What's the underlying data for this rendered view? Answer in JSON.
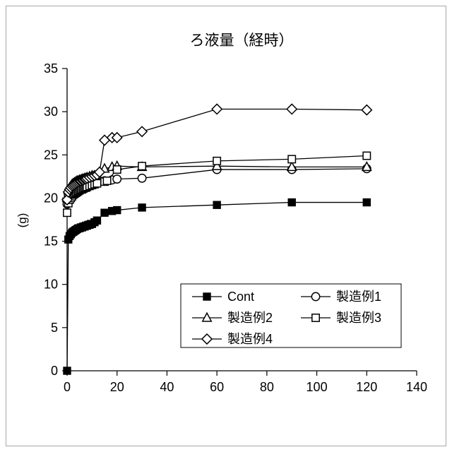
{
  "chart_data": {
    "type": "line",
    "title": "ろ液量（経時）",
    "xlabel": "",
    "ylabel": "(g)",
    "xlim": [
      0,
      140
    ],
    "ylim": [
      0,
      35
    ],
    "xticks": [
      0,
      20,
      40,
      60,
      80,
      100,
      120,
      140
    ],
    "yticks": [
      0,
      5,
      10,
      15,
      20,
      25,
      30,
      35
    ],
    "grid": false,
    "line_color": "#000000",
    "legend_position": "inside-bottom-right",
    "series": [
      {
        "name": "Cont",
        "marker": "filled-square",
        "x": [
          0,
          0.5,
          1,
          1.5,
          2,
          2.5,
          3,
          3.5,
          4,
          4.5,
          5,
          5.5,
          6,
          6.5,
          7,
          7.5,
          8,
          8.5,
          9,
          9.5,
          10,
          11,
          12,
          15,
          18,
          20,
          30,
          60,
          90,
          120
        ],
        "y": [
          0,
          15.2,
          15.6,
          15.8,
          16.0,
          16.1,
          16.2,
          16.3,
          16.4,
          16.5,
          16.5,
          16.6,
          16.6,
          16.7,
          16.7,
          16.8,
          16.8,
          16.9,
          16.9,
          17.0,
          17.0,
          17.2,
          17.4,
          18.3,
          18.5,
          18.6,
          18.9,
          19.2,
          19.5,
          19.5
        ]
      },
      {
        "name": "製造例1",
        "marker": "open-circle",
        "x": [
          0,
          0.5,
          1,
          1.5,
          2,
          2.5,
          3,
          3.5,
          4,
          4.5,
          5,
          5.5,
          6,
          6.5,
          7,
          7.5,
          8,
          9,
          10,
          11,
          12,
          15,
          18,
          20,
          30,
          60,
          90,
          120
        ],
        "y": [
          19.3,
          20.2,
          20.6,
          20.8,
          21.0,
          21.1,
          21.2,
          21.3,
          21.4,
          21.4,
          21.5,
          21.5,
          21.6,
          21.6,
          21.7,
          21.7,
          21.8,
          21.8,
          21.9,
          21.9,
          22.0,
          22.0,
          22.1,
          22.2,
          22.3,
          23.3,
          23.3,
          23.4
        ]
      },
      {
        "name": "製造例2",
        "marker": "open-triangle",
        "x": [
          0,
          0.5,
          1,
          1.5,
          2,
          2.5,
          3,
          3.5,
          4,
          4.5,
          5,
          5.5,
          6,
          6.5,
          7,
          7.5,
          8,
          9,
          10,
          11,
          12,
          15,
          18,
          20,
          30,
          60,
          90,
          120
        ],
        "y": [
          20.0,
          20.9,
          21.2,
          21.4,
          21.6,
          21.7,
          21.8,
          21.9,
          22.0,
          22.0,
          22.1,
          22.1,
          22.2,
          22.2,
          22.3,
          22.3,
          22.4,
          22.5,
          22.6,
          22.6,
          22.7,
          23.4,
          23.6,
          23.7,
          23.6,
          23.7,
          23.6,
          23.6
        ]
      },
      {
        "name": "製造例3",
        "marker": "open-square",
        "x": [
          0,
          0.5,
          1,
          1.5,
          2,
          2.5,
          3,
          3.5,
          4,
          4.5,
          5,
          5.5,
          6,
          6.5,
          7,
          7.5,
          8,
          9,
          10,
          11,
          12,
          15,
          16,
          20,
          30,
          60,
          90,
          120
        ],
        "y": [
          18.3,
          19.4,
          19.8,
          20.0,
          20.2,
          20.4,
          20.5,
          20.6,
          20.7,
          20.8,
          20.9,
          21.0,
          21.0,
          21.1,
          21.2,
          21.2,
          21.3,
          21.4,
          21.5,
          21.6,
          21.7,
          21.9,
          22.0,
          23.3,
          23.7,
          24.3,
          24.5,
          24.9
        ]
      },
      {
        "name": "製造例4",
        "marker": "open-diamond",
        "x": [
          0,
          0.5,
          1,
          1.5,
          2,
          2.5,
          3,
          3.5,
          4,
          4.5,
          5,
          5.5,
          6,
          6.5,
          7,
          7.5,
          8,
          9,
          10,
          11,
          12,
          13,
          15,
          18,
          20,
          30,
          60,
          90,
          120
        ],
        "y": [
          19.8,
          20.7,
          21.0,
          21.2,
          21.4,
          21.5,
          21.6,
          21.7,
          21.8,
          21.9,
          22.0,
          22.0,
          22.1,
          22.1,
          22.2,
          22.2,
          22.3,
          22.4,
          22.5,
          22.6,
          22.7,
          23.0,
          26.7,
          27.0,
          27.0,
          27.7,
          30.3,
          30.3,
          30.2
        ]
      }
    ],
    "legend": [
      {
        "label": "Cont",
        "marker": "filled-square"
      },
      {
        "label": "製造例1",
        "marker": "open-circle"
      },
      {
        "label": "製造例2",
        "marker": "open-triangle"
      },
      {
        "label": "製造例3",
        "marker": "open-square"
      },
      {
        "label": "製造例4",
        "marker": "open-diamond"
      }
    ]
  }
}
